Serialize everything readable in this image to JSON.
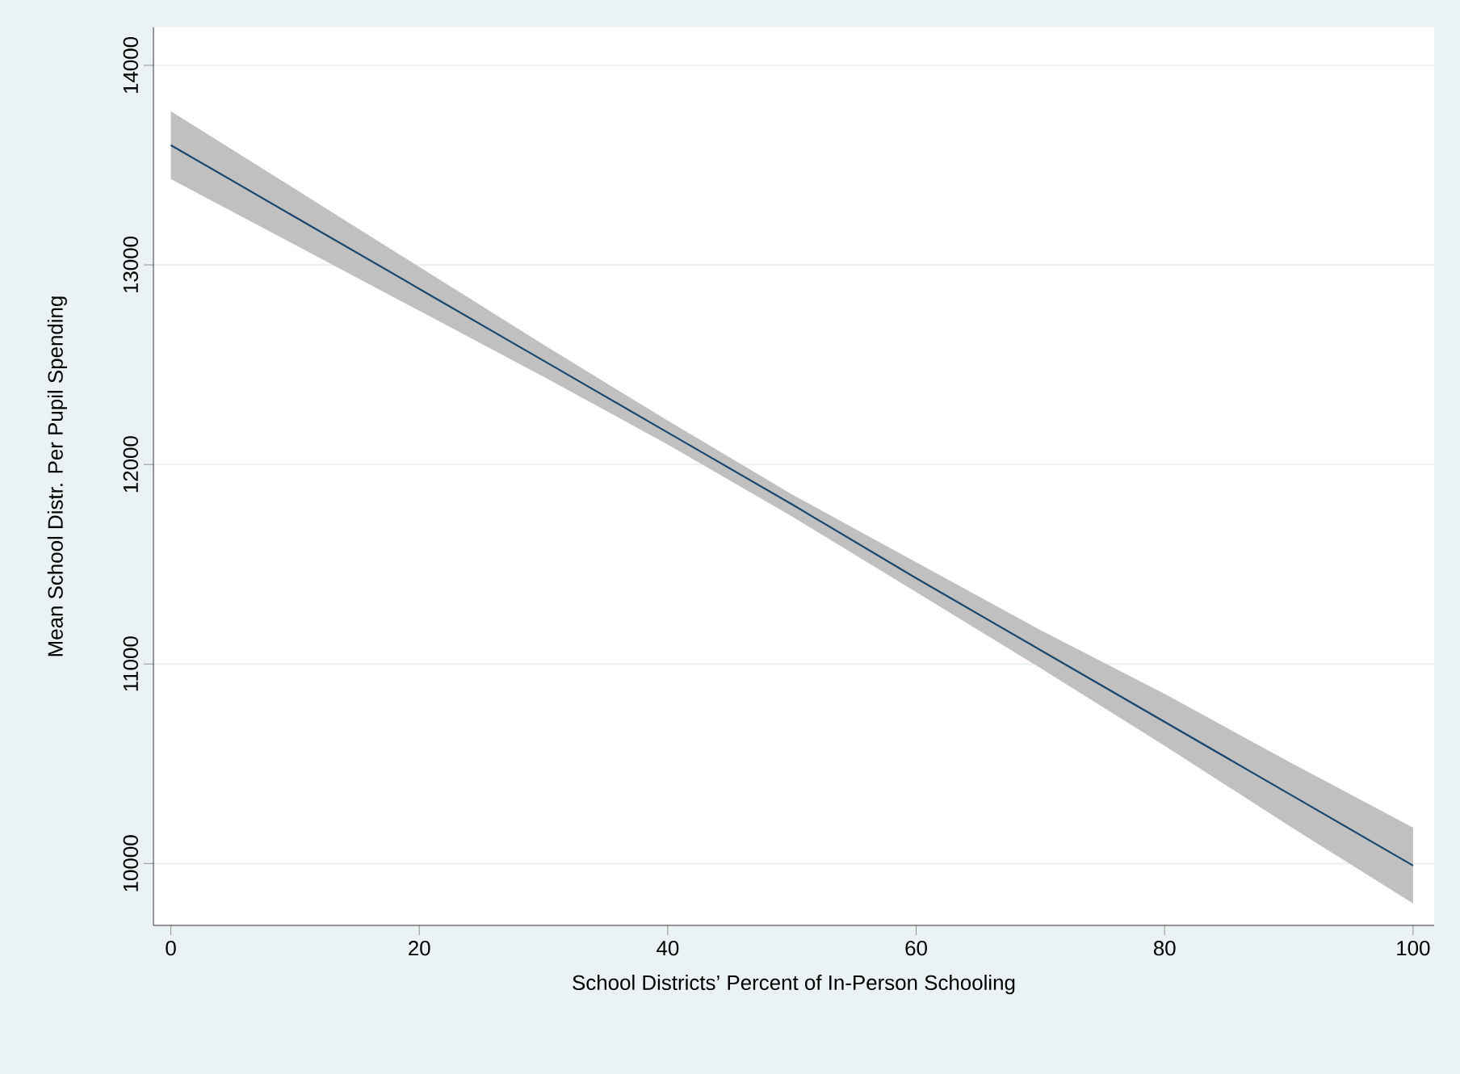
{
  "chart_data": {
    "type": "line",
    "xlabel": "School Districts’ Percent of In-Person Schooling",
    "ylabel": "Mean School Distr. Per Pupil Spending",
    "x": [
      0,
      10,
      20,
      30,
      40,
      50,
      60,
      70,
      80,
      90,
      100
    ],
    "series": [
      {
        "color": "#1a476f",
        "values": [
          13600,
          13240,
          12880,
          12520,
          12160,
          11800,
          11430,
          11070,
          10710,
          10350,
          9990
        ],
        "lower": [
          13430,
          13100,
          12770,
          12440,
          12100,
          11740,
          11360,
          10980,
          10590,
          10190,
          9800
        ],
        "upper": [
          13770,
          13380,
          12990,
          12600,
          12220,
          11850,
          11510,
          11170,
          10850,
          10510,
          10180
        ]
      }
    ],
    "xlim": [
      -1.4,
      101.7
    ],
    "ylim": [
      9690,
      14190
    ],
    "xticks": [
      0,
      20,
      40,
      60,
      80,
      100
    ],
    "yticks": [
      10000,
      11000,
      12000,
      13000,
      14000
    ],
    "grid": "y",
    "marker": "none",
    "line_style": "solid"
  }
}
